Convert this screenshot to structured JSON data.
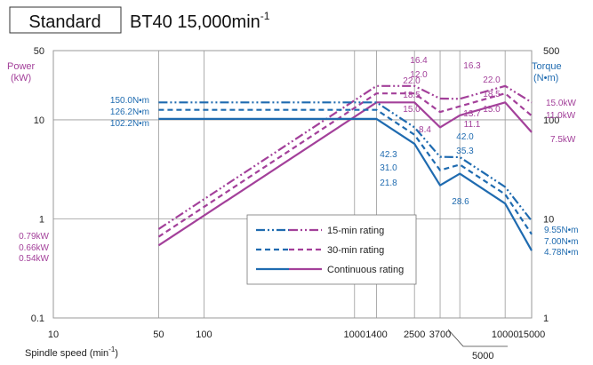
{
  "header": {
    "badge": "Standard",
    "spec_prefix": "BT40 15,000min",
    "spec_sup": "-1"
  },
  "axes": {
    "left_title": "Power",
    "left_unit": "(kW)",
    "right_title": "Torque",
    "right_unit": "(N•m)",
    "x_label_prefix": "Spindle speed (min",
    "x_label_sup": "-1",
    "x_label_suffix": ")",
    "left_ticks": [
      "50",
      "10",
      "1",
      "0.1"
    ],
    "right_ticks": [
      "500",
      "100",
      "10",
      "1"
    ],
    "x_ticks": [
      "10",
      "50",
      "100",
      "1000",
      "1400",
      "2500",
      "3700",
      "10000",
      "15000"
    ],
    "x_callout": "5000"
  },
  "colors": {
    "power": "#a3409a",
    "torque": "#1f6bb0",
    "grid": "#999999",
    "text": "#222222"
  },
  "chart_data": {
    "type": "line",
    "title": "BT40 15,000min-1",
    "xlabel": "Spindle speed (min-1)",
    "ylabel_left": "Power (kW)",
    "ylabel_right": "Torque (N•m)",
    "x_scale": "log",
    "y_scale": "log",
    "xlim": [
      10,
      15000
    ],
    "ylim_left": [
      0.1,
      50
    ],
    "ylim_right": [
      1,
      500
    ],
    "grid": true,
    "legend_position": "lower-center",
    "series": [
      {
        "name": "15-min rating",
        "kind": "power",
        "style": "dash-dot-dot",
        "x": [
          50,
          1400,
          2500,
          3700,
          5000,
          10000,
          15000
        ],
        "y": [
          0.79,
          22.0,
          22.0,
          16.4,
          16.3,
          22.0,
          15.0
        ]
      },
      {
        "name": "30-min rating",
        "kind": "power",
        "style": "dashed",
        "x": [
          50,
          1400,
          2500,
          3700,
          5000,
          10000,
          15000
        ],
        "y": [
          0.66,
          18.5,
          18.5,
          12.0,
          13.7,
          18.5,
          11.0
        ]
      },
      {
        "name": "Continuous rating",
        "kind": "power",
        "style": "solid",
        "x": [
          50,
          1400,
          2500,
          3700,
          5000,
          10000,
          15000
        ],
        "y": [
          0.54,
          15.0,
          15.0,
          8.4,
          11.1,
          15.0,
          7.5
        ]
      },
      {
        "name": "15-min rating",
        "kind": "torque",
        "style": "dash-dot-dot",
        "x": [
          50,
          1400,
          2500,
          3700,
          5000,
          10000,
          15000
        ],
        "y": [
          150.0,
          150.0,
          84.0,
          42.3,
          42.0,
          21.0,
          9.55
        ]
      },
      {
        "name": "30-min rating",
        "kind": "torque",
        "style": "dashed",
        "x": [
          50,
          1400,
          2500,
          3700,
          5000,
          10000,
          15000
        ],
        "y": [
          126.2,
          126.2,
          70.7,
          31.0,
          35.3,
          17.7,
          7.0
        ]
      },
      {
        "name": "Continuous rating",
        "kind": "torque",
        "style": "solid",
        "x": [
          50,
          1400,
          2500,
          3700,
          5000,
          10000,
          15000
        ],
        "y": [
          102.2,
          102.2,
          57.3,
          21.8,
          28.6,
          14.3,
          4.78
        ]
      }
    ],
    "annotations": {
      "power_left": [
        "0.79kW",
        "0.66kW",
        "0.54kW"
      ],
      "power_right": [
        "15.0kW",
        "11.0kW",
        "7.5kW"
      ],
      "power_top_1400": [
        "22.0",
        "18.5",
        "15.0"
      ],
      "power_top_3700": [
        "16.4",
        "12.0",
        "8.4"
      ],
      "power_top_5000": [
        "16.3",
        "13.7",
        "11.1"
      ],
      "power_top_10000": [
        "22.0",
        "18.5",
        "15.0"
      ],
      "torque_left": [
        "150.0N•m",
        "126.2N•m",
        "102.2N•m"
      ],
      "torque_right": [
        "9.55N•m",
        "7.00N•m",
        "4.78N•m"
      ],
      "torque_3700": [
        "42.3",
        "31.0",
        "21.8"
      ],
      "torque_5000": [
        "42.0",
        "35.3",
        "28.6"
      ]
    }
  }
}
